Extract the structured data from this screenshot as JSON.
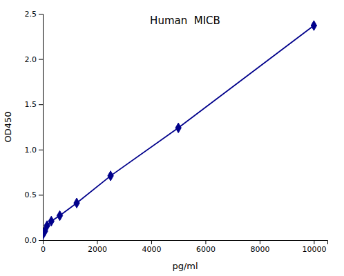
{
  "chart_data": {
    "type": "line",
    "title": "Human  MICB",
    "xlabel": "pg/ml",
    "ylabel": "OD450",
    "x": [
      0,
      78,
      156,
      313,
      625,
      1250,
      2500,
      5000,
      10000
    ],
    "values": [
      0.06,
      0.1,
      0.16,
      0.21,
      0.27,
      0.41,
      0.71,
      1.24,
      2.37
    ],
    "color": "#00008B",
    "marker": "diamond",
    "line_style": "solid",
    "grid": false,
    "xlim": [
      0,
      10500
    ],
    "ylim": [
      0,
      2.5
    ],
    "xticks": [
      0,
      2000,
      4000,
      6000,
      8000,
      10000
    ],
    "yticks": [
      {
        "value": 0,
        "label": "0.0"
      },
      0.5,
      {
        "value": 1.0,
        "label": "1.0"
      },
      1.5,
      {
        "value": 2.0,
        "label": "2.0"
      },
      2.5
    ]
  }
}
